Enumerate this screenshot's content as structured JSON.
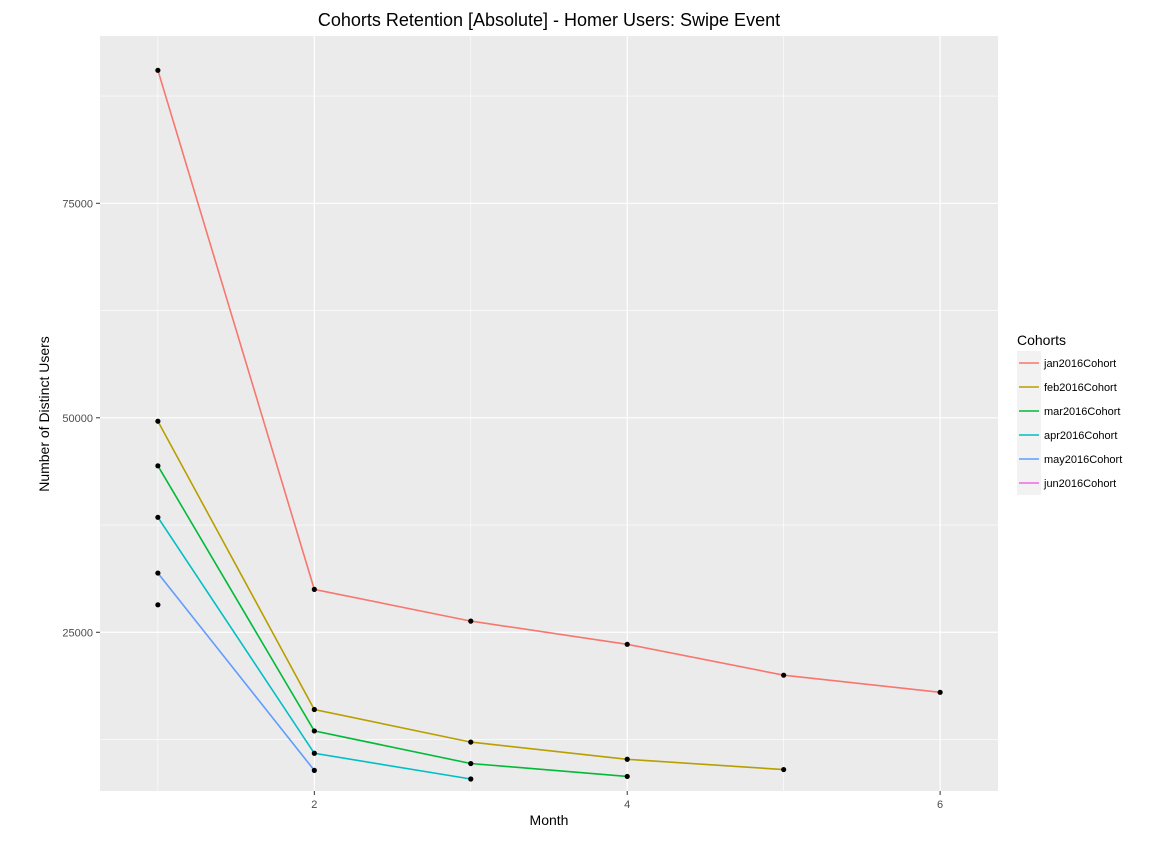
{
  "chart_data": {
    "type": "line",
    "title": "Cohorts Retention [Absolute] - Homer Users: Swipe Event",
    "xlabel": "Month",
    "ylabel": "Number of Distinct Users",
    "xlim": [
      0.63,
      6.37
    ],
    "ylim": [
      6500,
      94500
    ],
    "x_ticks": [
      2,
      4,
      6
    ],
    "y_ticks": [
      25000,
      50000,
      75000
    ],
    "grid": true,
    "legend": {
      "title": "Cohorts",
      "position": "right"
    },
    "series": [
      {
        "name": "jan2016Cohort",
        "color": "#F8766D",
        "x": [
          1,
          2,
          3,
          4,
          5,
          6
        ],
        "values": [
          90500,
          30000,
          26300,
          23600,
          20000,
          18000
        ]
      },
      {
        "name": "feb2016Cohort",
        "color": "#B79F00",
        "x": [
          1,
          2,
          3,
          4,
          5
        ],
        "values": [
          49600,
          16000,
          12200,
          10200,
          9000
        ]
      },
      {
        "name": "mar2016Cohort",
        "color": "#00BA38",
        "x": [
          1,
          2,
          3,
          4
        ],
        "values": [
          44400,
          13500,
          9700,
          8200
        ]
      },
      {
        "name": "apr2016Cohort",
        "color": "#00BFC4",
        "x": [
          1,
          2,
          3
        ],
        "values": [
          38400,
          10900,
          7900
        ]
      },
      {
        "name": "may2016Cohort",
        "color": "#619CFF",
        "x": [
          1,
          2
        ],
        "values": [
          31900,
          8900
        ]
      },
      {
        "name": "jun2016Cohort",
        "color": "#F564E3",
        "x": [
          1
        ],
        "values": [
          28200
        ]
      }
    ]
  }
}
